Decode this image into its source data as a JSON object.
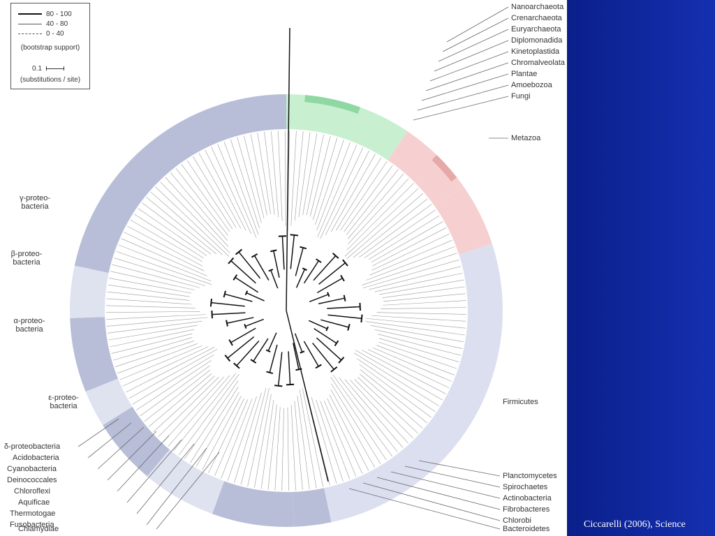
{
  "legend": {
    "entries": [
      {
        "label": "80 - 100",
        "style": "solid-thick"
      },
      {
        "label": "40 - 80",
        "style": "solid-thin"
      },
      {
        "label": "0 - 40",
        "style": "dashed"
      }
    ],
    "caption": "(bootstrap support)",
    "scale_value": "0.1",
    "scale_caption": "(substitutions / site)"
  },
  "left_groups": [
    {
      "id": "gamma",
      "label": "γ-proteo-\nbacteria"
    },
    {
      "id": "beta",
      "label": "β-proteo-\nbacteria"
    },
    {
      "id": "alpha",
      "label": "α-proteo-\nbacteria"
    },
    {
      "id": "epsilon",
      "label": "ε-proteo-\nbacteria"
    }
  ],
  "left_taxa": [
    "δ-proteobacteria",
    "Acidobacteria",
    "Cyanobacteria",
    "Deinococcales",
    "Chloroflexi",
    "Aquificae",
    "Thermotogae",
    "Fusobacteria",
    "Chlamydiae"
  ],
  "right_top_taxa": [
    "Nanoarchaeota",
    "Crenarchaeota",
    "Euryarchaeota",
    "Diplomonadida",
    "Kinetoplastida",
    "Chromalveolata",
    "Plantae",
    "Amoebozoa",
    "Fungi"
  ],
  "right_groups": [
    {
      "id": "metazoa",
      "label": "Metazoa"
    },
    {
      "id": "firmicutes",
      "label": "Firmicutes"
    }
  ],
  "right_bottom_taxa": [
    "Planctomycetes",
    "Spirochaetes",
    "Actinobacteria",
    "Fibrobacteres",
    "Chlorobi",
    "Bacteroidetes"
  ],
  "credit": "Ciccarelli (2006), Science",
  "colors": {
    "bacteria_dark": "#b8bed8",
    "bacteria_light": "#dfe2ef",
    "archaea": "#c8f0d0",
    "archaea_dark": "#8fd8a4",
    "eukarya": "#f6d0d0",
    "eukarya_dark": "#e6a8a8",
    "firmicutes": "#dcdff0",
    "bacteria_text": "#2a2a9a",
    "archaea_text": "#1e9a3a",
    "eukarya_text": "#b02020",
    "background_right": "#0f27a0"
  }
}
